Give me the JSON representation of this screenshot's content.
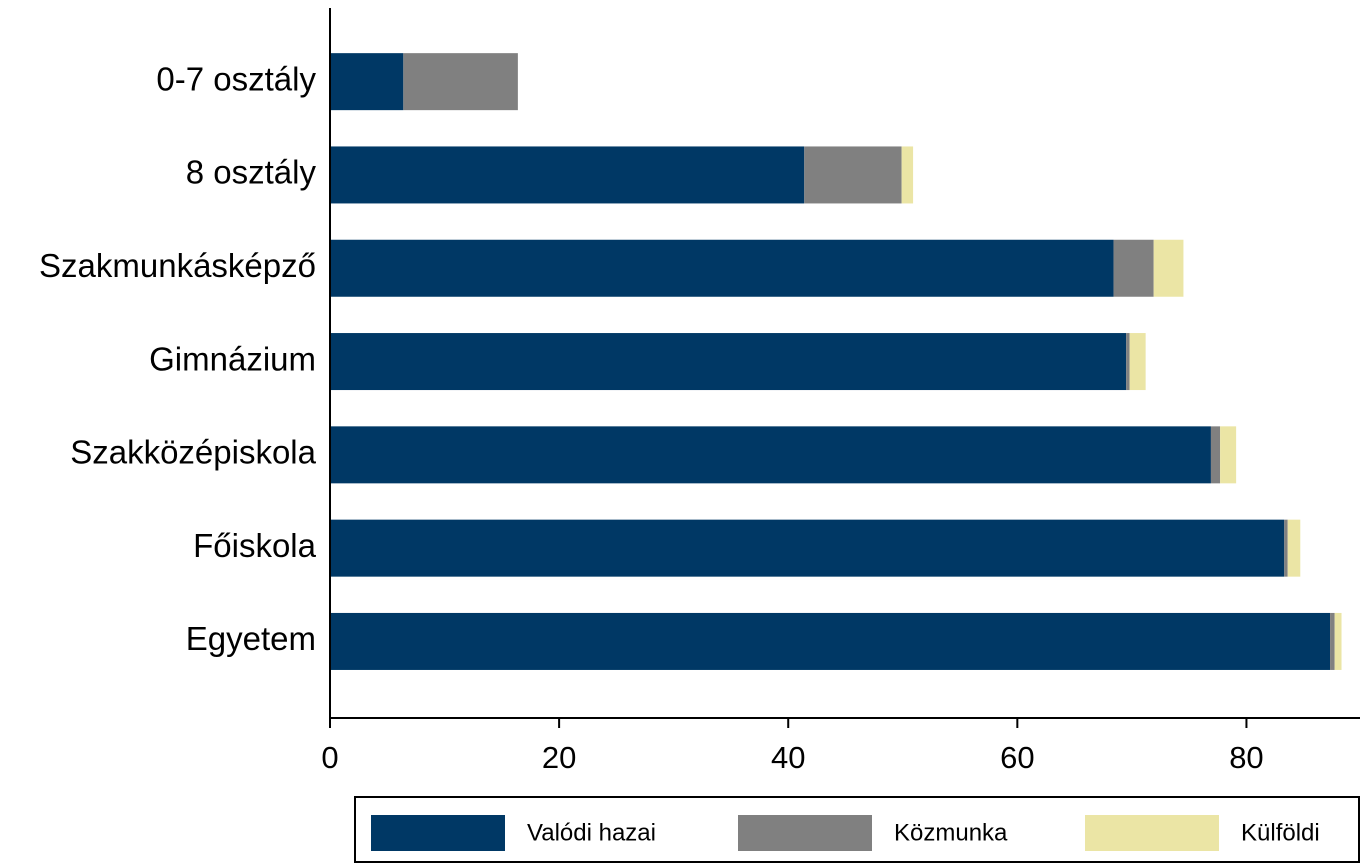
{
  "chart_data": {
    "type": "stacked_barh",
    "categories": [
      "0-7 osztály",
      "8 osztály",
      "Szakmunkásképző",
      "Gimnázium",
      "Szakközépiskola",
      "Főiskola",
      "Egyetem"
    ],
    "series": [
      {
        "name": "Valódi hazai",
        "color": "#003865",
        "values": [
          6.4,
          41.4,
          68.4,
          69.5,
          76.9,
          83.3,
          87.3
        ]
      },
      {
        "name": "Közmunka",
        "color": "#808080",
        "values": [
          10.0,
          8.5,
          3.5,
          0.3,
          0.8,
          0.3,
          0.4
        ]
      },
      {
        "name": "Külföldi",
        "color": "#ebe5a5",
        "values": [
          0,
          1.0,
          2.6,
          1.4,
          1.4,
          1.1,
          0.6
        ]
      }
    ],
    "xlim": [
      0,
      90
    ],
    "xticks": [
      0,
      20,
      40,
      60,
      80
    ],
    "legend": "bottom"
  }
}
